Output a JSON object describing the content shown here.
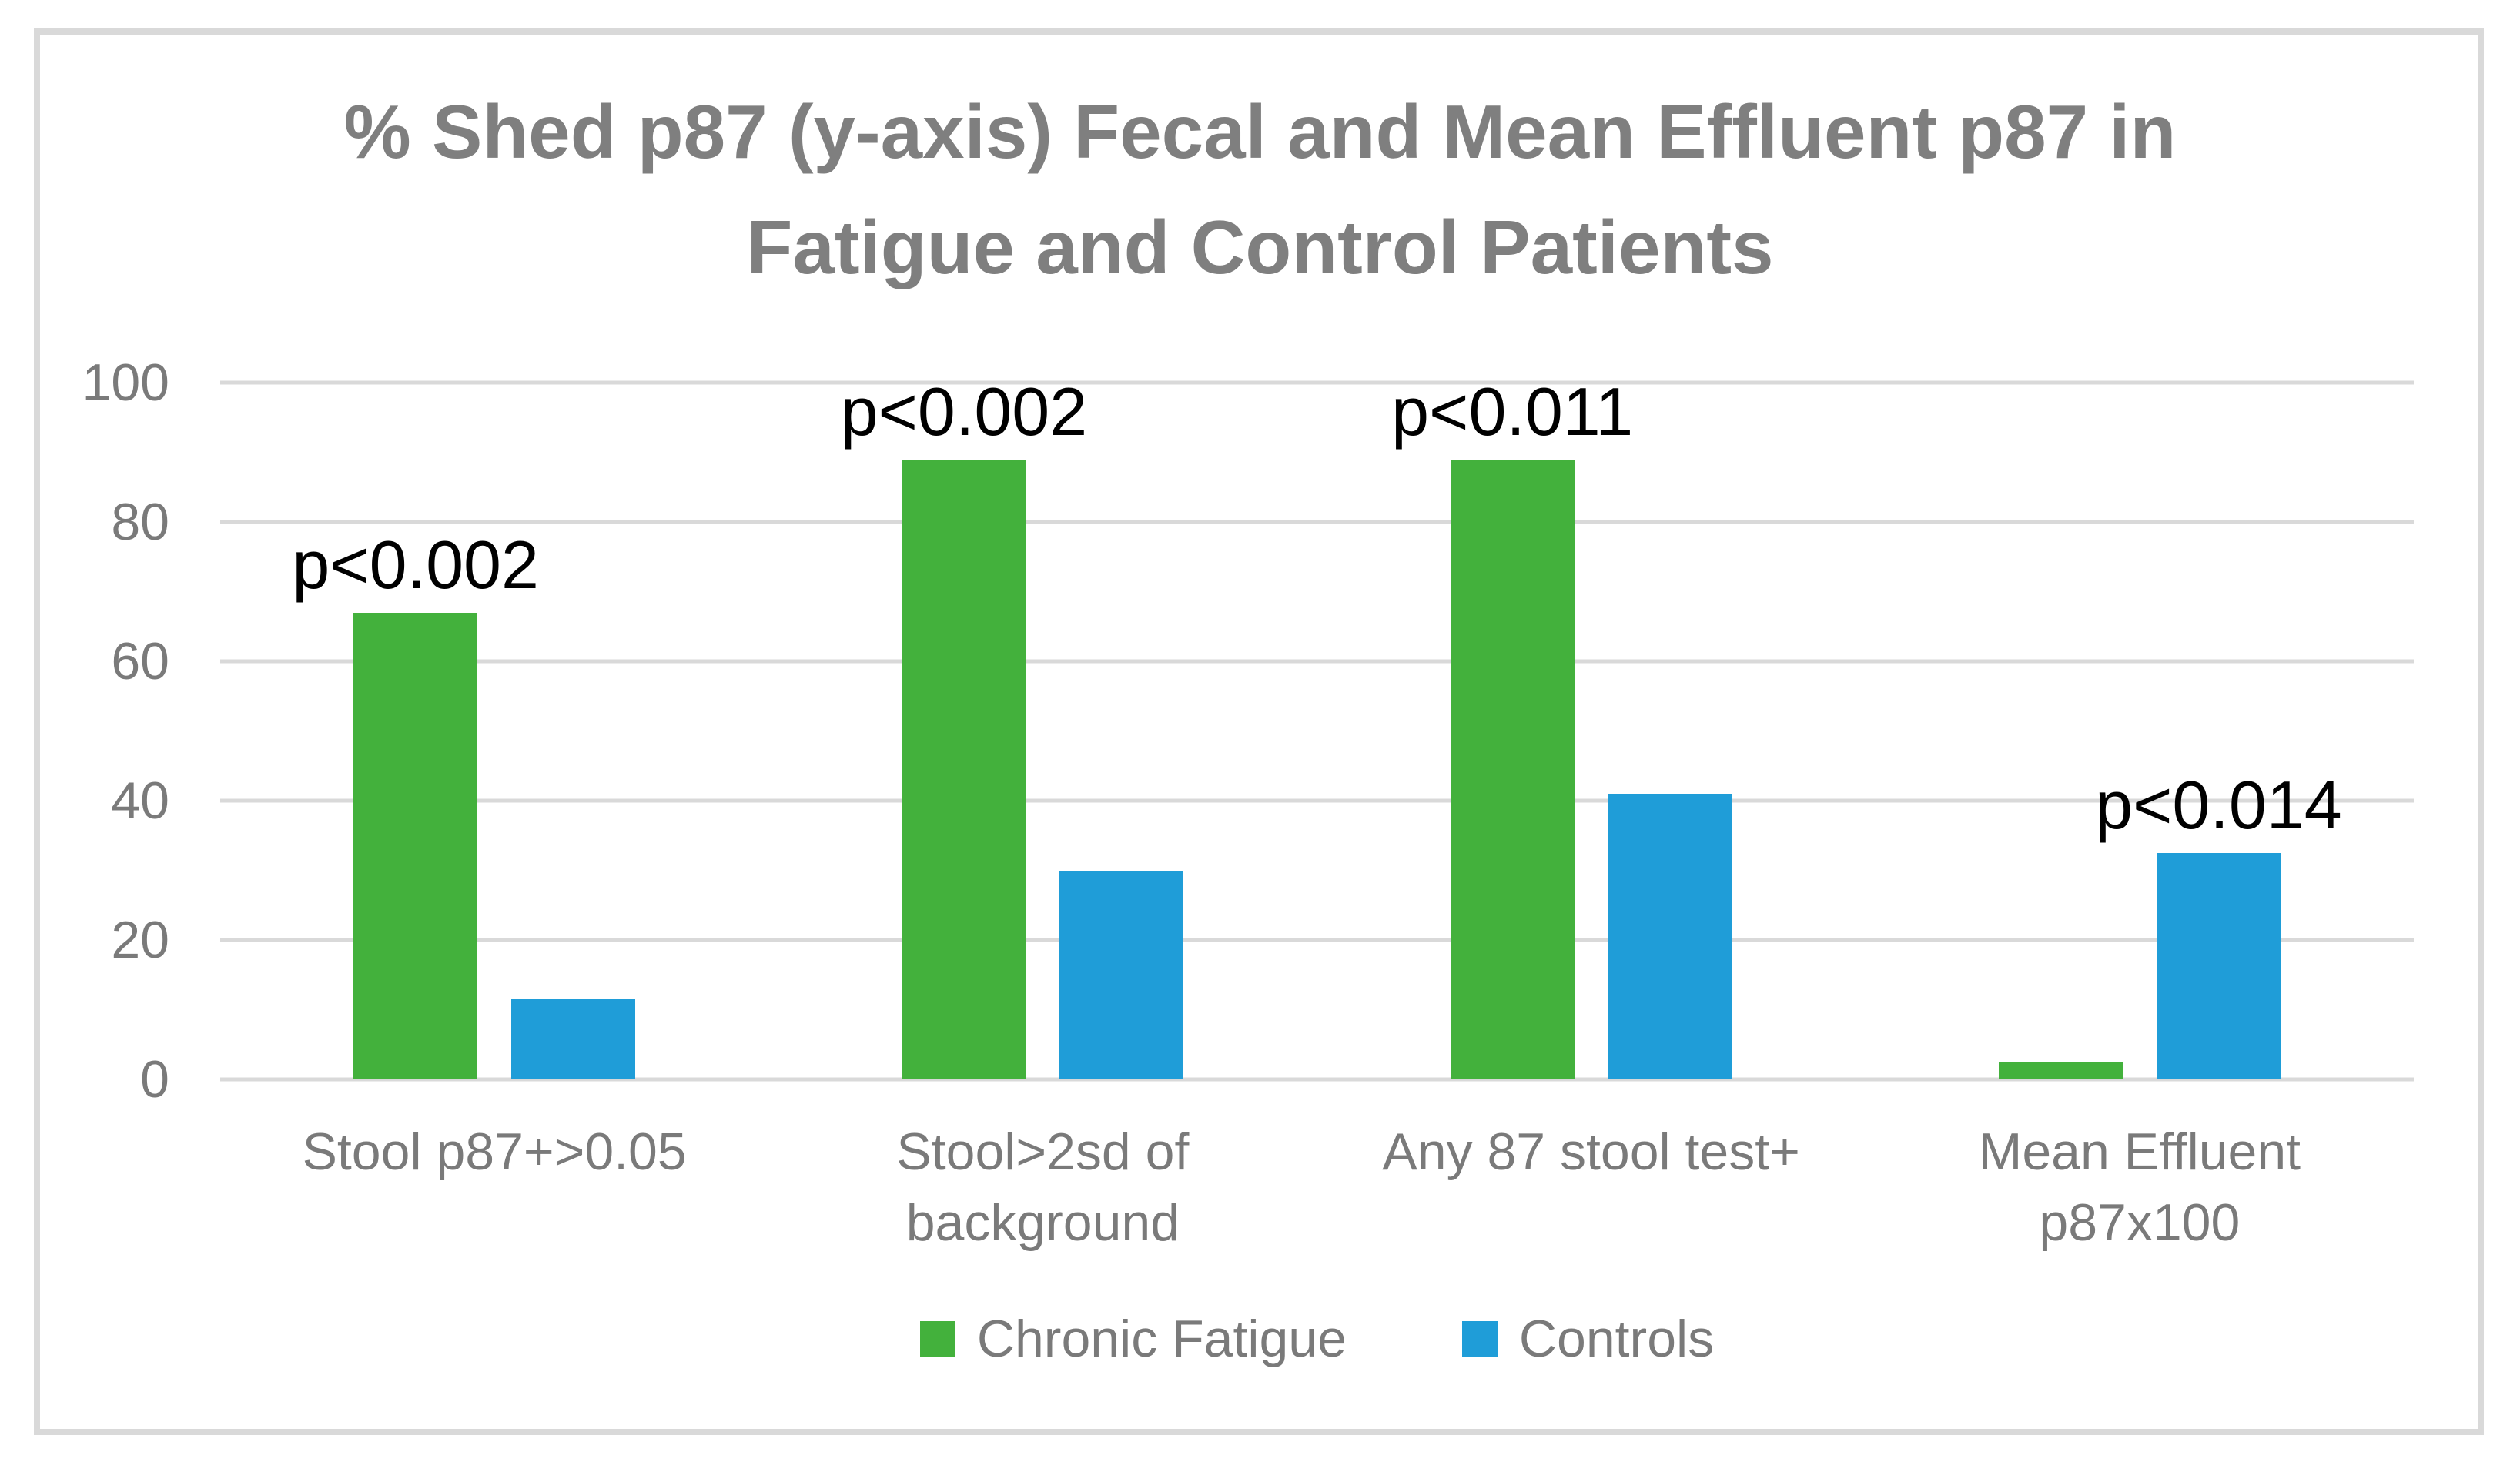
{
  "chart_data": {
    "type": "bar",
    "title_lines": [
      "% Shed p87 (y-axis) Fecal and Mean Effluent p87 in",
      "Fatigue and Control Patients"
    ],
    "categories": [
      [
        "Stool p87+>0.05"
      ],
      [
        "Stool>2sd of",
        "background"
      ],
      [
        "Any 87 stool test+"
      ],
      [
        "Mean Effluent",
        "p87x100"
      ]
    ],
    "series": [
      {
        "name": "Chronic Fatigue",
        "color": "#43B13C",
        "values": [
          67,
          89,
          89,
          2.5
        ]
      },
      {
        "name": "Controls",
        "color": "#1F9DD8",
        "values": [
          11.5,
          30,
          41,
          32.5
        ]
      }
    ],
    "annotations": [
      {
        "text": "p<0.002",
        "group": 0,
        "series": 0
      },
      {
        "text": "p<0.002",
        "group": 1,
        "series": 0
      },
      {
        "text": "p<0.011",
        "group": 2,
        "series": 0
      },
      {
        "text": "p<0.014",
        "group": 3,
        "series": 1
      }
    ],
    "y_ticks": [
      0,
      20,
      40,
      60,
      80,
      100
    ],
    "ylim": [
      0,
      100
    ],
    "grid": true,
    "legend_position": "bottom",
    "colors": {
      "title_text": "#7F7F7F",
      "axis_text": "#7A7A7A",
      "gridline": "#D9D9D9",
      "frame_border": "#D9D9D9",
      "annotation_text": "#000000",
      "background": "#ffffff"
    }
  }
}
